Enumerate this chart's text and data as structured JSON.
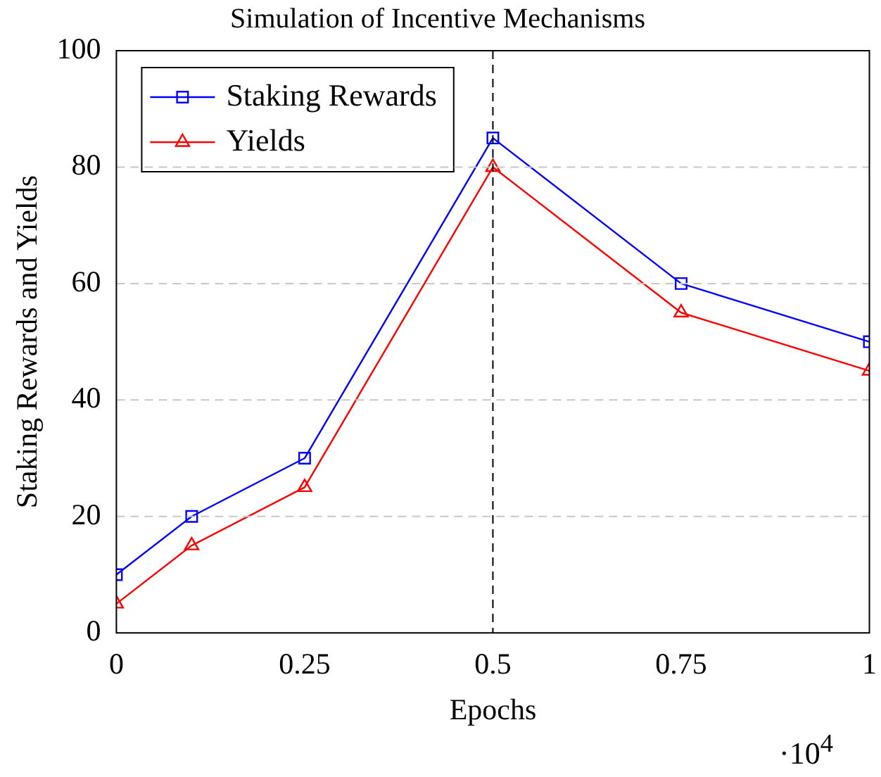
{
  "chart_data": {
    "type": "line",
    "title": "Simulation of Incentive Mechanisms",
    "xlabel": "Epochs",
    "ylabel": "Staking Rewards and Yields",
    "x": [
      0,
      0.1,
      0.25,
      0.5,
      0.75,
      1
    ],
    "series": [
      {
        "name": "Staking Rewards",
        "color": "#0000ff",
        "marker": "square",
        "values": [
          10,
          20,
          30,
          85,
          60,
          50
        ]
      },
      {
        "name": "Yields",
        "color": "#ff0000",
        "marker": "triangle",
        "values": [
          5,
          15,
          25,
          80,
          55,
          45
        ]
      }
    ],
    "xlim": [
      0,
      1
    ],
    "xticks": [
      0,
      0.25,
      0.5,
      0.75,
      1
    ],
    "ylim": [
      0,
      100
    ],
    "yticks": [
      0,
      20,
      40,
      60,
      80,
      100
    ],
    "grid": "y",
    "legend": "top left",
    "line_style": "solid",
    "ref_lines": [
      {
        "axis": "x",
        "value": 0.5,
        "color": "#000000",
        "line_style": "dashed"
      }
    ],
    "annotations": [
      "·10$^{4}$"
    ]
  }
}
